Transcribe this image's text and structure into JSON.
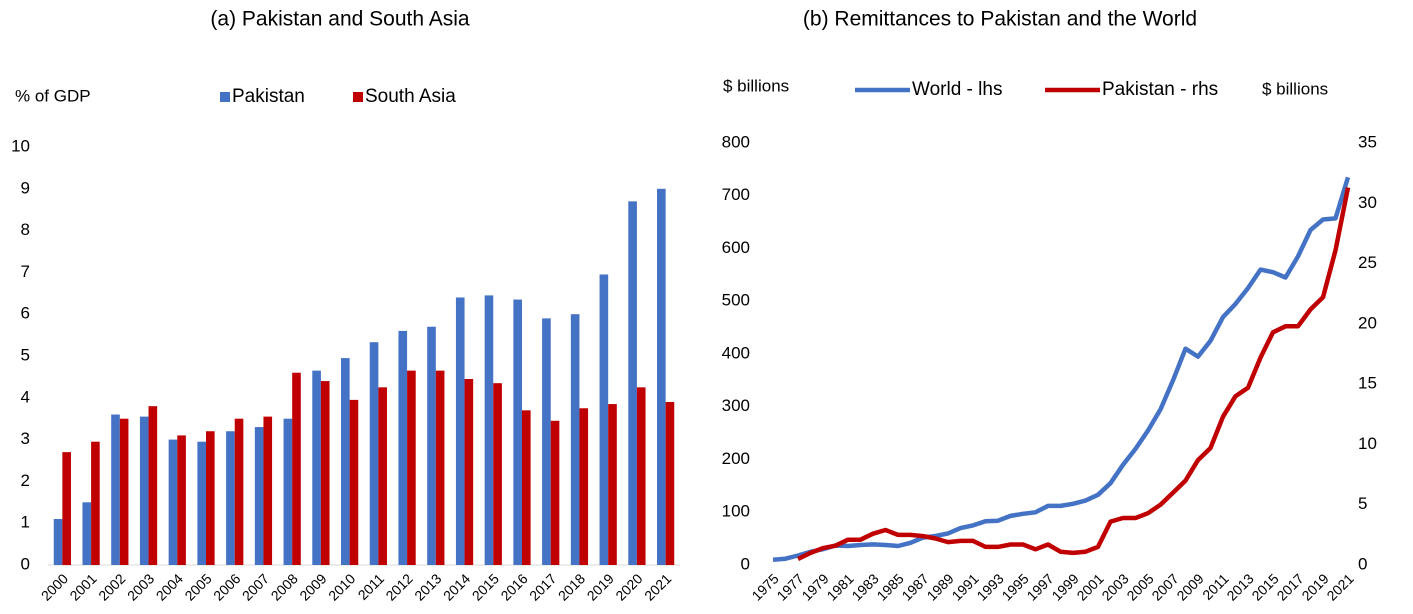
{
  "chart_data": [
    {
      "type": "bar",
      "title": "(a)  Pakistan and South Asia",
      "y_label": "% of GDP",
      "categories": [
        "2000",
        "2001",
        "2002",
        "2003",
        "2004",
        "2005",
        "2006",
        "2007",
        "2008",
        "2009",
        "2010",
        "2011",
        "2012",
        "2013",
        "2014",
        "2015",
        "2016",
        "2017",
        "2018",
        "2019",
        "2020",
        "2021"
      ],
      "series": [
        {
          "name": "Pakistan",
          "color": "#4472c4",
          "values": [
            1.1,
            1.5,
            3.6,
            3.55,
            3.0,
            2.95,
            3.2,
            3.3,
            3.5,
            4.65,
            4.95,
            5.33,
            5.6,
            5.7,
            6.4,
            6.45,
            6.35,
            5.9,
            6.0,
            6.95,
            8.7,
            9.0
          ]
        },
        {
          "name": "South Asia",
          "color": "#c00000",
          "values": [
            2.7,
            2.95,
            3.5,
            3.8,
            3.1,
            3.2,
            3.5,
            3.55,
            4.6,
            4.4,
            3.95,
            4.25,
            4.65,
            4.65,
            4.45,
            4.35,
            3.7,
            3.45,
            3.75,
            3.85,
            4.25,
            3.9
          ]
        }
      ],
      "ylim": [
        0,
        10
      ],
      "yticks": [
        0,
        1,
        2,
        3,
        4,
        5,
        6,
        7,
        8,
        9,
        10
      ]
    },
    {
      "type": "line",
      "title": "(b) Remittances to Pakistan and the World",
      "y_label": "$ billions",
      "y2_label": "$ billions",
      "x": [
        1975,
        1976,
        1977,
        1978,
        1979,
        1980,
        1981,
        1982,
        1983,
        1984,
        1985,
        1986,
        1987,
        1988,
        1989,
        1990,
        1991,
        1992,
        1993,
        1994,
        1995,
        1996,
        1997,
        1998,
        1999,
        2000,
        2001,
        2002,
        2003,
        2004,
        2005,
        2006,
        2007,
        2008,
        2009,
        2010,
        2011,
        2012,
        2013,
        2014,
        2015,
        2016,
        2017,
        2018,
        2019,
        2020,
        2021
      ],
      "series": [
        {
          "name": "World - lhs",
          "color": "#4472c4",
          "values": [
            10,
            12,
            18,
            25,
            30,
            37,
            36,
            38,
            39,
            38,
            36,
            42,
            52,
            55,
            60,
            70,
            75,
            83,
            84,
            93,
            97,
            100,
            112,
            112,
            116,
            122,
            133,
            155,
            190,
            220,
            255,
            295,
            350,
            410,
            395,
            425,
            470,
            495,
            525,
            560,
            555,
            545,
            585,
            635,
            655,
            657,
            735
          ]
        },
        {
          "name": "Pakistan - rhs",
          "color": "#c00000",
          "axis": "y2",
          "values": [
            null,
            null,
            0.5,
            1.0,
            1.4,
            1.6,
            2.1,
            2.1,
            2.6,
            2.9,
            2.5,
            2.5,
            2.4,
            2.2,
            1.9,
            2.0,
            2.0,
            1.5,
            1.5,
            1.7,
            1.7,
            1.3,
            1.7,
            1.1,
            1.0,
            1.1,
            1.5,
            3.6,
            3.9,
            3.9,
            4.3,
            5.0,
            6.0,
            7.0,
            8.7,
            9.7,
            12.3,
            14.0,
            14.7,
            17.2,
            19.3,
            19.8,
            19.8,
            21.2,
            22.2,
            26.1,
            31.3
          ]
        }
      ],
      "xlim": [
        1975,
        2021
      ],
      "xticks": [
        1975,
        1977,
        1979,
        1981,
        1983,
        1985,
        1987,
        1989,
        1991,
        1993,
        1995,
        1997,
        1999,
        2001,
        2003,
        2005,
        2007,
        2009,
        2011,
        2013,
        2015,
        2017,
        2019,
        2021
      ],
      "ylim": [
        0,
        800
      ],
      "yticks": [
        0,
        100,
        200,
        300,
        400,
        500,
        600,
        700,
        800
      ],
      "y2lim": [
        0,
        35
      ],
      "y2ticks": [
        0,
        5,
        10,
        15,
        20,
        25,
        30,
        35
      ]
    }
  ]
}
